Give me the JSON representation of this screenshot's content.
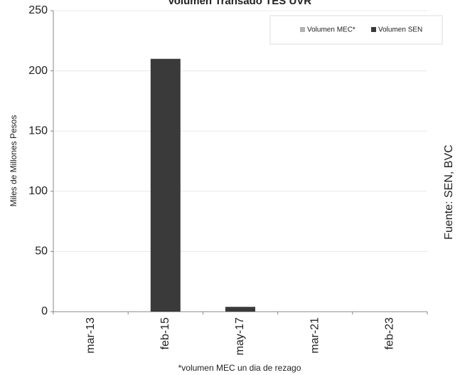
{
  "chart_data": {
    "type": "bar",
    "title": "Volumen Transado TES UVR",
    "ylabel": "Miles de Millones Pesos",
    "categories": [
      "mar-13",
      "feb-15",
      "may-17",
      "mar-21",
      "feb-23"
    ],
    "series": [
      {
        "name": "Volumen MEC*",
        "color": "#b3b3b3",
        "values": [
          0,
          0,
          0,
          0,
          0
        ]
      },
      {
        "name": "Volumen SEN",
        "color": "#3a3a3a",
        "values": [
          0,
          210,
          4,
          0,
          0
        ]
      }
    ],
    "ylim": [
      0,
      250
    ],
    "yticks": [
      0,
      50,
      100,
      150,
      200,
      250
    ],
    "grid": true,
    "legend": "top-right",
    "footnote": "*volumen MEC un dia de rezago",
    "source": "Fuente: SEN, BVC"
  }
}
